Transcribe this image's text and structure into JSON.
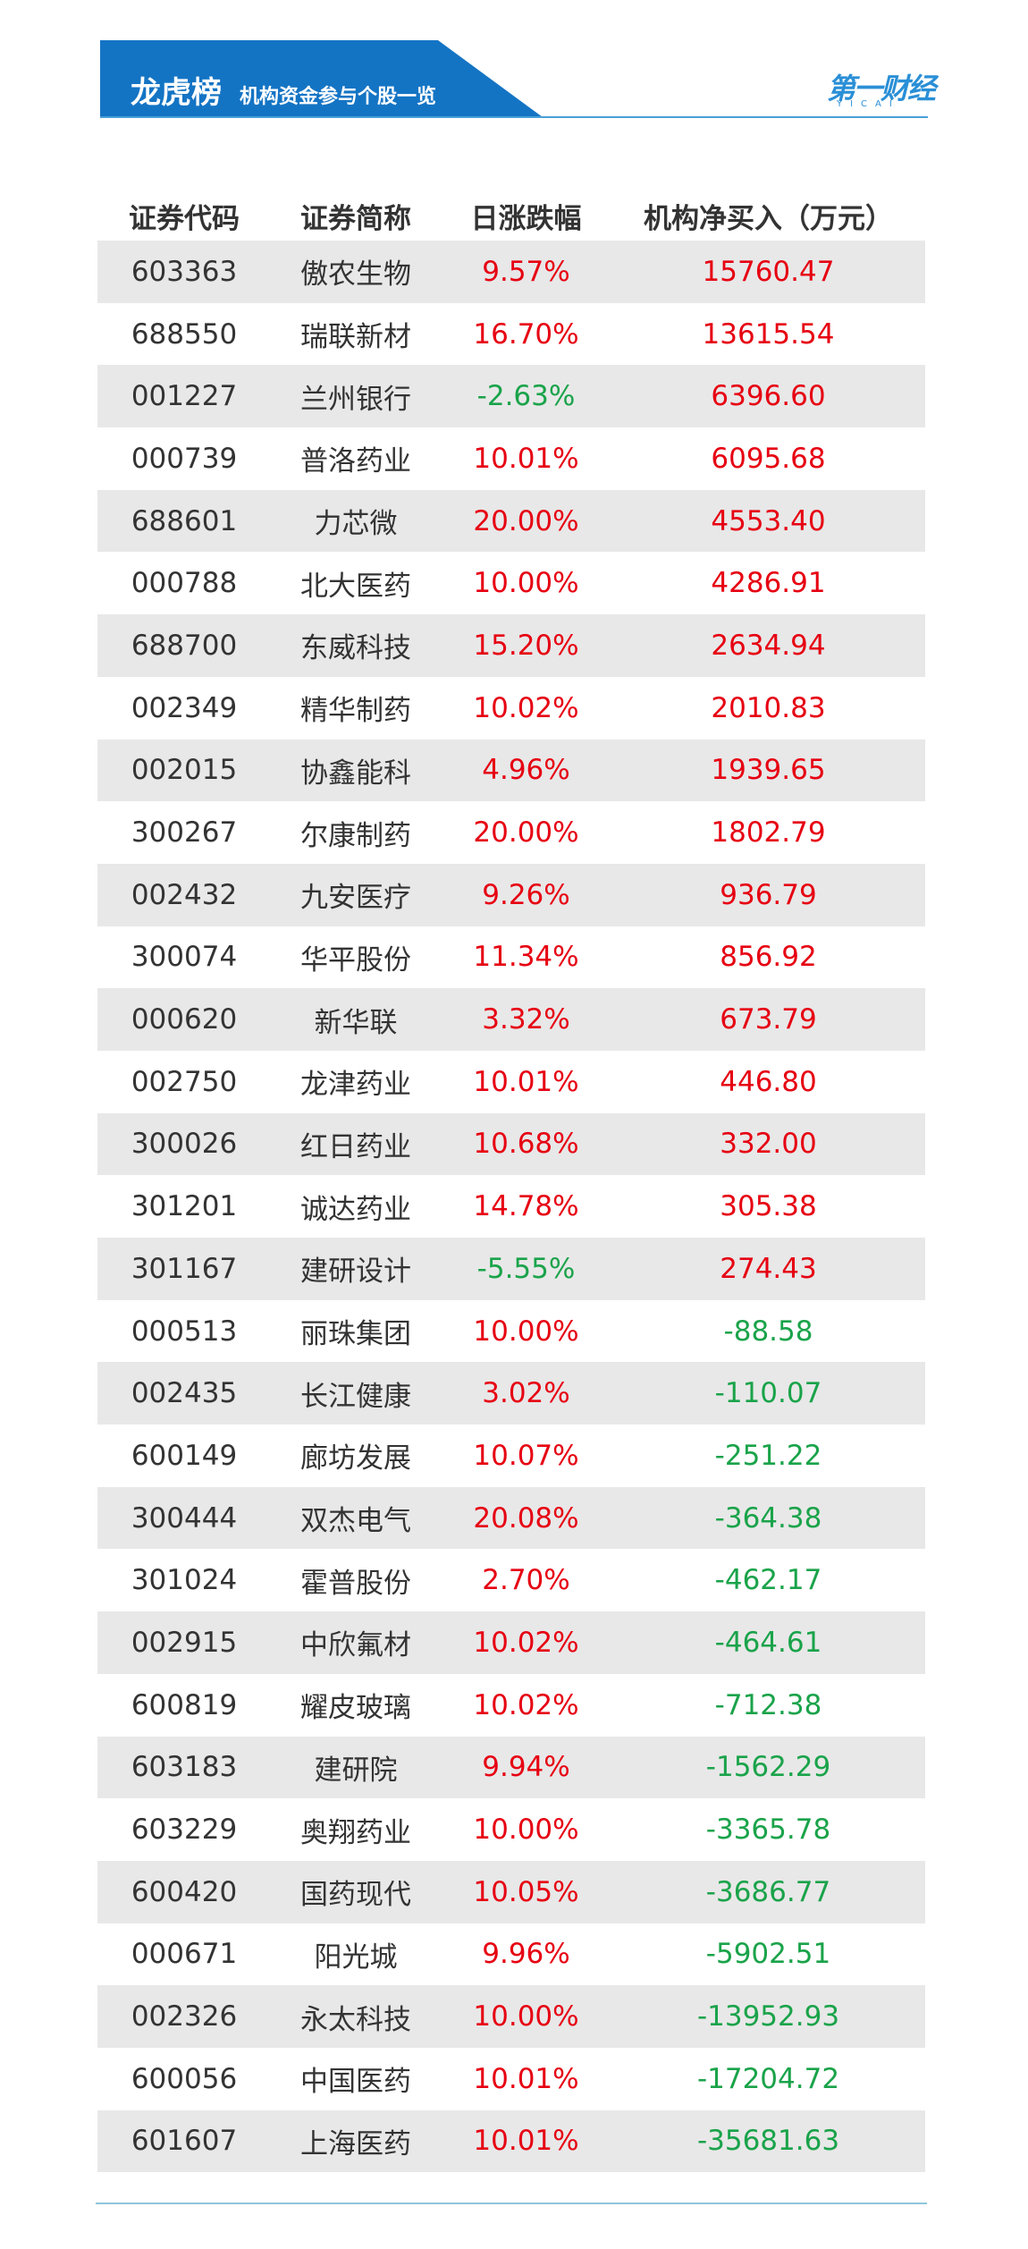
{
  "header": {
    "title": "龙虎榜",
    "subtitle": "机构资金参与个股一览",
    "logo": "第一财经",
    "logo_sub": "YICAI"
  },
  "table": {
    "columns": [
      "证券代码",
      "证券简称",
      "日涨跌幅",
      "机构净买入（万元）"
    ],
    "rows": [
      [
        "603363",
        "傲农生物",
        "9.57%",
        "15760.47"
      ],
      [
        "688550",
        "瑞联新材",
        "16.70%",
        "13615.54"
      ],
      [
        "001227",
        "兰州银行",
        "-2.63%",
        "6396.60"
      ],
      [
        "000739",
        "普洛药业",
        "10.01%",
        "6095.68"
      ],
      [
        "688601",
        "力芯微",
        "20.00%",
        "4553.40"
      ],
      [
        "000788",
        "北大医药",
        "10.00%",
        "4286.91"
      ],
      [
        "688700",
        "东威科技",
        "15.20%",
        "2634.94"
      ],
      [
        "002349",
        "精华制药",
        "10.02%",
        "2010.83"
      ],
      [
        "002015",
        "协鑫能科",
        "4.96%",
        "1939.65"
      ],
      [
        "300267",
        "尔康制药",
        "20.00%",
        "1802.79"
      ],
      [
        "002432",
        "九安医疗",
        "9.26%",
        "936.79"
      ],
      [
        "300074",
        "华平股份",
        "11.34%",
        "856.92"
      ],
      [
        "000620",
        "新华联",
        "3.32%",
        "673.79"
      ],
      [
        "002750",
        "龙津药业",
        "10.01%",
        "446.80"
      ],
      [
        "300026",
        "红日药业",
        "10.68%",
        "332.00"
      ],
      [
        "301201",
        "诚达药业",
        "14.78%",
        "305.38"
      ],
      [
        "301167",
        "建研设计",
        "-5.55%",
        "274.43"
      ],
      [
        "000513",
        "丽珠集团",
        "10.00%",
        "-88.58"
      ],
      [
        "002435",
        "长江健康",
        "3.02%",
        "-110.07"
      ],
      [
        "600149",
        "廊坊发展",
        "10.07%",
        "-251.22"
      ],
      [
        "300444",
        "双杰电气",
        "20.08%",
        "-364.38"
      ],
      [
        "301024",
        "霍普股份",
        "2.70%",
        "-462.17"
      ],
      [
        "002915",
        "中欣氟材",
        "10.02%",
        "-464.61"
      ],
      [
        "600819",
        "耀皮玻璃",
        "10.02%",
        "-712.38"
      ],
      [
        "603183",
        "建研院",
        "9.94%",
        "-1562.29"
      ],
      [
        "603229",
        "奥翔药业",
        "10.00%",
        "-3365.78"
      ],
      [
        "600420",
        "国药现代",
        "10.05%",
        "-3686.77"
      ],
      [
        "000671",
        "阳光城",
        "9.96%",
        "-5902.51"
      ],
      [
        "002326",
        "永太科技",
        "10.00%",
        "-13952.93"
      ],
      [
        "600056",
        "中国医药",
        "10.01%",
        "-17204.72"
      ],
      [
        "601607",
        "上海医药",
        "10.01%",
        "-35681.63"
      ]
    ]
  }
}
